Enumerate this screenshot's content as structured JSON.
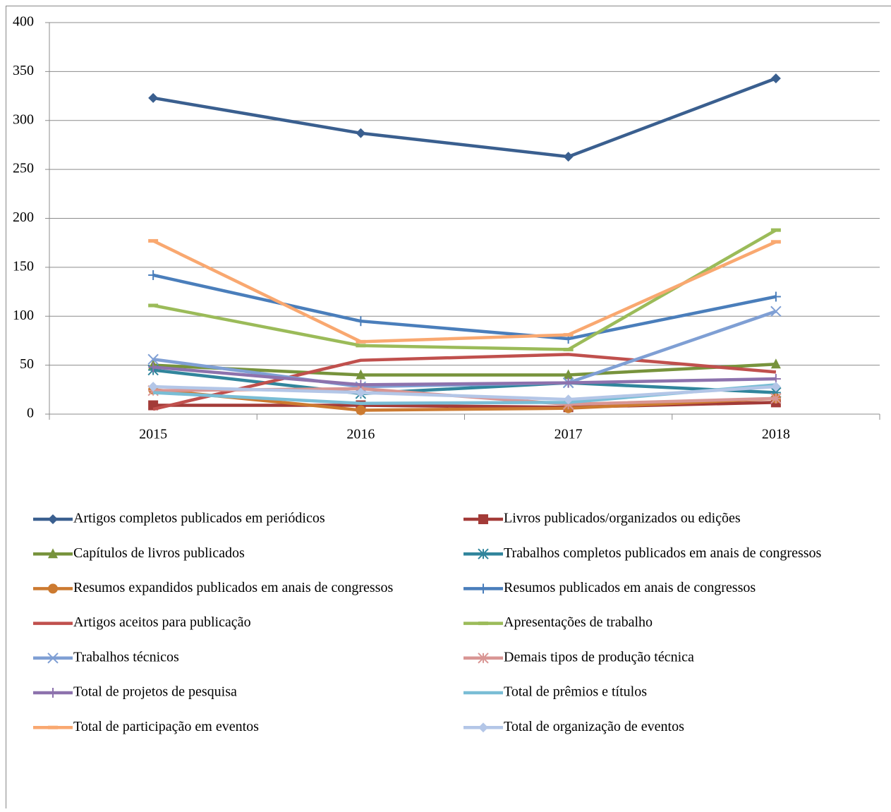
{
  "chart_data": {
    "type": "line",
    "categories": [
      "2015",
      "2016",
      "2017",
      "2018"
    ],
    "ylim": [
      0,
      400
    ],
    "yticks": [
      0,
      50,
      100,
      150,
      200,
      250,
      300,
      350,
      400
    ],
    "grid": true,
    "legend": "bottom",
    "series": [
      {
        "name": "Artigos completos publicados em periódicos",
        "color": "#3a5f8f",
        "marker": "diamond",
        "values": [
          323,
          287,
          263,
          343
        ]
      },
      {
        "name": "Livros publicados/organizados ou edições",
        "color": "#a33b38",
        "marker": "square",
        "values": [
          9,
          9,
          7,
          12
        ]
      },
      {
        "name": "Capítulos de livros publicados",
        "color": "#77933c",
        "marker": "triangle",
        "values": [
          50,
          40,
          40,
          51
        ]
      },
      {
        "name": "Trabalhos completos publicados em anais de congressos",
        "color": "#31859c",
        "marker": "star",
        "values": [
          45,
          21,
          32,
          22
        ]
      },
      {
        "name": "Resumos expandidos publicados em anais de congressos",
        "color": "#cc7a30",
        "marker": "circle",
        "values": [
          25,
          4,
          6,
          16
        ]
      },
      {
        "name": "Resumos publicados em anais de congressos",
        "color": "#4a7ebb",
        "marker": "plus",
        "values": [
          142,
          95,
          77,
          120
        ]
      },
      {
        "name": "Artigos aceitos para publicação",
        "color": "#c0504d",
        "marker": "none",
        "values": [
          5,
          55,
          61,
          43
        ]
      },
      {
        "name": "Apresentações de trabalho",
        "color": "#9bbb59",
        "marker": "dash",
        "values": [
          111,
          70,
          66,
          188
        ]
      },
      {
        "name": "Trabalhos técnicos",
        "color": "#7f9fd4",
        "marker": "x",
        "values": [
          56,
          28,
          32,
          105
        ]
      },
      {
        "name": "Demais tipos de produção técnica",
        "color": "#d99694",
        "marker": "star",
        "values": [
          24,
          26,
          10,
          16
        ]
      },
      {
        "name": "Total de projetos de pesquisa",
        "color": "#8d72ad",
        "marker": "plus",
        "values": [
          48,
          30,
          32,
          36
        ]
      },
      {
        "name": "Total de prêmios e títulos",
        "color": "#79bdd5",
        "marker": "none",
        "values": [
          22,
          11,
          12,
          30
        ]
      },
      {
        "name": "Total de participação em eventos",
        "color": "#f9a870",
        "marker": "dash",
        "values": [
          177,
          74,
          81,
          176
        ]
      },
      {
        "name": "Total de organização de eventos",
        "color": "#b3c6e7",
        "marker": "diamond",
        "values": [
          28,
          22,
          15,
          28
        ]
      }
    ]
  }
}
